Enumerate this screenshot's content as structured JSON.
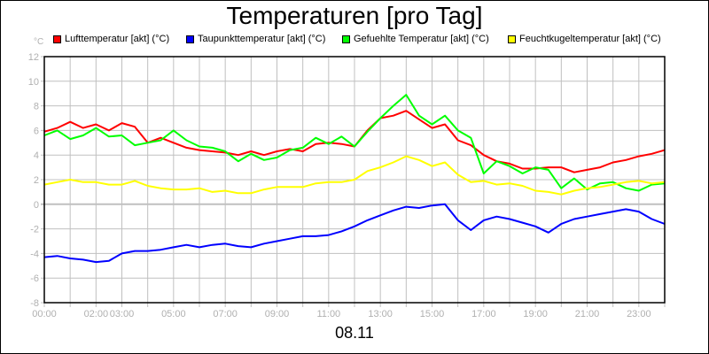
{
  "title": "Temperaturen [pro Tag]",
  "unit_label": "°C",
  "date_label": "08.11",
  "legend": [
    {
      "label": "Lufttemperatur [akt] (°C)",
      "color": "#ff0000",
      "x": 60
    },
    {
      "label": "Taupunkttemperatur [akt] (°C)",
      "color": "#0000ff",
      "x": 210
    },
    {
      "label": "Gefuehlte Temperatur [akt] (°C)",
      "color": "#00ff00",
      "x": 386
    },
    {
      "label": "Feuchtkugeltemperatur [akt] (°C)",
      "color": "#ffff00",
      "x": 573
    }
  ],
  "chart_data": {
    "type": "line",
    "title": "Temperaturen [pro Tag]",
    "xlabel": "08.11",
    "ylabel": "°C",
    "ylim": [
      -8,
      12
    ],
    "yticks": [
      -8,
      -6,
      -4,
      -2,
      0,
      2,
      4,
      6,
      8,
      10,
      12
    ],
    "xlim_hours": [
      0,
      24
    ],
    "xtick_labels": [
      {
        "h": 0,
        "label": "00:00"
      },
      {
        "h": 2,
        "label": "02:00"
      },
      {
        "h": 3,
        "label": "03:00"
      },
      {
        "h": 5,
        "label": "05:00"
      },
      {
        "h": 7,
        "label": "07:00"
      },
      {
        "h": 9,
        "label": "09:00"
      },
      {
        "h": 11,
        "label": "11:00"
      },
      {
        "h": 13,
        "label": "13:00"
      },
      {
        "h": 15,
        "label": "15:00"
      },
      {
        "h": 17,
        "label": "17:00"
      },
      {
        "h": 19,
        "label": "19:00"
      },
      {
        "h": 21,
        "label": "21:00"
      },
      {
        "h": 23,
        "label": "23:00"
      }
    ],
    "grid": true,
    "legend_position": "top",
    "x": [
      0,
      0.5,
      1,
      1.5,
      2,
      2.5,
      3,
      3.5,
      4,
      4.5,
      5,
      5.5,
      6,
      6.5,
      7,
      7.5,
      8,
      8.5,
      9,
      9.5,
      10,
      10.5,
      11,
      11.5,
      12,
      12.5,
      13,
      13.5,
      14,
      14.5,
      15,
      15.5,
      16,
      16.5,
      17,
      17.5,
      18,
      18.5,
      19,
      19.5,
      20,
      20.5,
      21,
      21.5,
      22,
      22.5,
      23,
      23.5,
      24
    ],
    "series": [
      {
        "name": "Lufttemperatur [akt] (°C)",
        "color": "#ff0000",
        "values": [
          5.9,
          6.2,
          6.7,
          6.2,
          6.5,
          6.0,
          6.6,
          6.3,
          5.0,
          5.4,
          5.0,
          4.6,
          4.4,
          4.3,
          4.2,
          4.0,
          4.3,
          4.0,
          4.3,
          4.5,
          4.3,
          4.9,
          5.0,
          4.9,
          4.7,
          6.0,
          7.0,
          7.2,
          7.6,
          6.9,
          6.2,
          6.5,
          5.2,
          4.8,
          4.0,
          3.5,
          3.3,
          2.9,
          2.9,
          3.0,
          3.0,
          2.6,
          2.8,
          3.0,
          3.4,
          3.6,
          3.9,
          4.1,
          4.4
        ]
      },
      {
        "name": "Taupunkttemperatur [akt] (°C)",
        "color": "#0000ff",
        "values": [
          -4.3,
          -4.2,
          -4.4,
          -4.5,
          -4.7,
          -4.6,
          -4.0,
          -3.8,
          -3.8,
          -3.7,
          -3.5,
          -3.3,
          -3.5,
          -3.3,
          -3.2,
          -3.4,
          -3.5,
          -3.2,
          -3.0,
          -2.8,
          -2.6,
          -2.6,
          -2.5,
          -2.2,
          -1.8,
          -1.3,
          -0.9,
          -0.5,
          -0.2,
          -0.3,
          -0.1,
          0.0,
          -1.3,
          -2.1,
          -1.3,
          -1.0,
          -1.2,
          -1.5,
          -1.8,
          -2.3,
          -1.6,
          -1.2,
          -1.0,
          -0.8,
          -0.6,
          -0.4,
          -0.6,
          -1.2,
          -1.6
        ]
      },
      {
        "name": "Gefuehlte Temperatur [akt] (°C)",
        "color": "#00ff00",
        "values": [
          5.6,
          6.0,
          5.3,
          5.6,
          6.2,
          5.5,
          5.6,
          4.8,
          5.0,
          5.2,
          6.0,
          5.2,
          4.7,
          4.6,
          4.3,
          3.5,
          4.1,
          3.6,
          3.8,
          4.4,
          4.6,
          5.4,
          4.9,
          5.5,
          4.7,
          5.9,
          7.0,
          8.0,
          8.9,
          7.2,
          6.5,
          7.2,
          6.0,
          5.4,
          2.5,
          3.5,
          3.1,
          2.5,
          3.0,
          2.8,
          1.3,
          2.1,
          1.2,
          1.7,
          1.8,
          1.3,
          1.1,
          1.6,
          1.7
        ]
      },
      {
        "name": "Feuchtkugeltemperatur [akt] (°C)",
        "color": "#ffff00",
        "values": [
          1.6,
          1.8,
          2.0,
          1.8,
          1.8,
          1.6,
          1.6,
          1.9,
          1.5,
          1.3,
          1.2,
          1.2,
          1.3,
          1.0,
          1.1,
          0.9,
          0.9,
          1.2,
          1.4,
          1.4,
          1.4,
          1.7,
          1.8,
          1.8,
          2.0,
          2.7,
          3.0,
          3.4,
          3.9,
          3.6,
          3.1,
          3.4,
          2.4,
          1.8,
          1.9,
          1.6,
          1.7,
          1.5,
          1.1,
          1.0,
          0.8,
          1.1,
          1.3,
          1.4,
          1.6,
          1.8,
          1.9,
          1.7,
          1.8
        ]
      }
    ]
  }
}
